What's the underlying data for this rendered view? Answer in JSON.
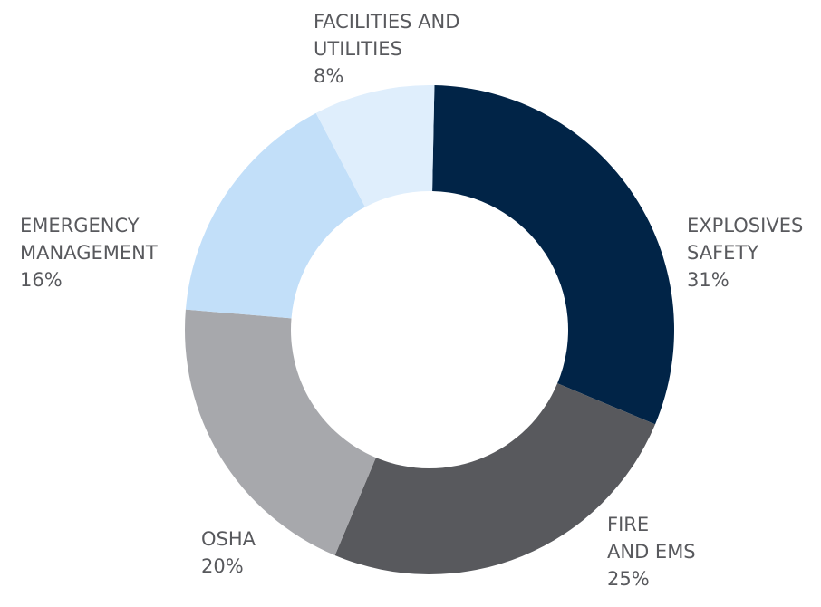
{
  "chart_data": {
    "type": "donut",
    "categories": [
      [
        "EXPLOSIVES",
        "SAFETY"
      ],
      [
        "FIRE",
        "AND EMS"
      ],
      [
        "OSHA"
      ],
      [
        "EMERGENCY",
        "MANAGEMENT"
      ],
      [
        "FACILITIES AND",
        "UTILITIES"
      ]
    ],
    "values": [
      31,
      25,
      20,
      16,
      8
    ],
    "value_labels": [
      "31%",
      "25%",
      "20%",
      "16%",
      "8%"
    ],
    "colors": [
      "#012447",
      "#58595d",
      "#a7a8ac",
      "#c2dff9",
      "#dfeefc"
    ]
  }
}
